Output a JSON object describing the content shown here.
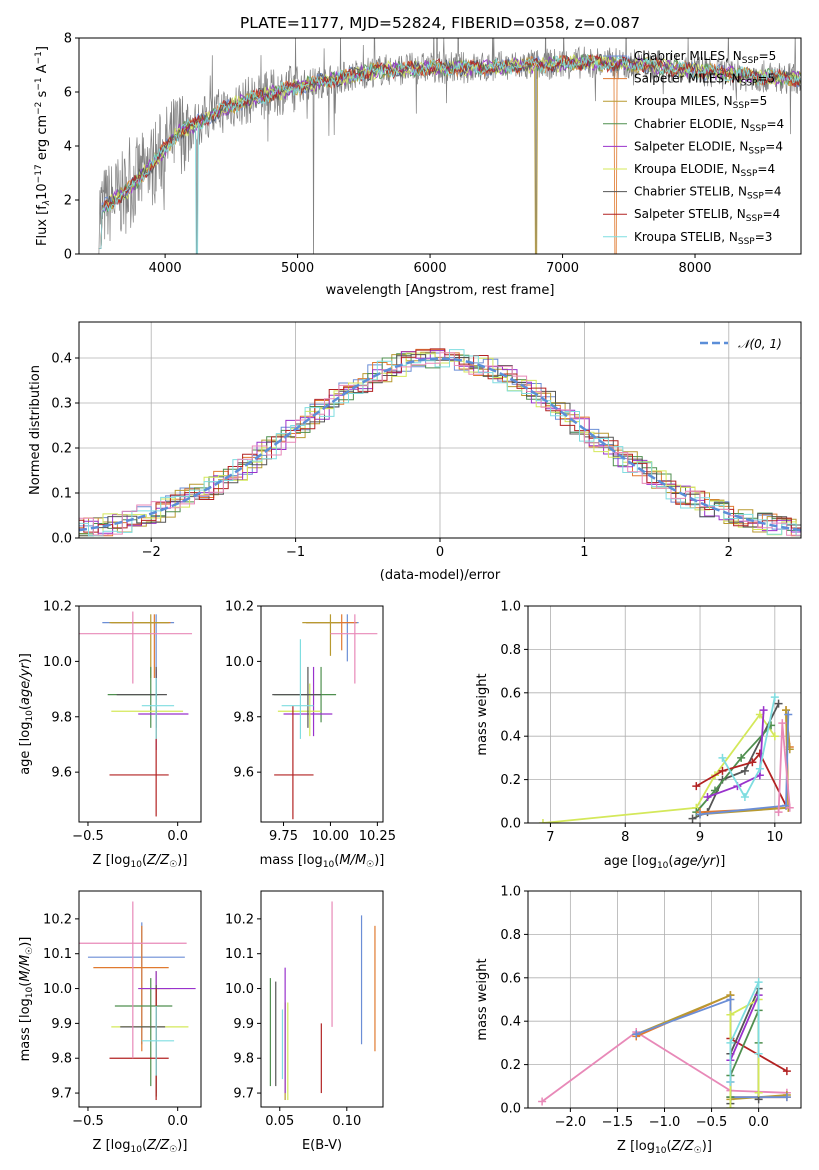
{
  "chart_data": [
    {
      "type": "line",
      "title": "PLATE=1177, MJD=52824, FIBERID=0358, z=0.087",
      "xlabel": "wavelength [Angstrom, rest frame]",
      "ylabel": "Flux [f_λ10^-17 erg cm^-2 s^-1 A^-1]",
      "xlim": [
        3350,
        8800
      ],
      "ylim": [
        0,
        8
      ],
      "xticks": [
        4000,
        5000,
        6000,
        7000,
        8000
      ],
      "yticks": [
        0,
        2,
        4,
        6,
        8
      ],
      "legend_position": "right",
      "data_spectrum_color": "#808080",
      "models": [
        {
          "name": "Chabrier MILES, N_SSP=5",
          "color": "#6b8ed6"
        },
        {
          "name": "Salpeter MILES, N_SSP=5",
          "color": "#e07a30"
        },
        {
          "name": "Kroupa MILES, N_SSP=5",
          "color": "#b89a30"
        },
        {
          "name": "Chabrier ELODIE, N_SSP=4",
          "color": "#4f8f4f"
        },
        {
          "name": "Salpeter ELODIE, N_SSP=4",
          "color": "#9932cc"
        },
        {
          "name": "Kroupa ELODIE, N_SSP=4",
          "color": "#d4e85a"
        },
        {
          "name": "Chabrier STELIB, N_SSP=4",
          "color": "#555555"
        },
        {
          "name": "Salpeter STELIB, N_SSP=4",
          "color": "#b22222"
        },
        {
          "name": "Kroupa STELIB, N_SSP=3",
          "color": "#7fdde0"
        }
      ],
      "continuum": {
        "x": [
          3500,
          3700,
          3900,
          4100,
          4300,
          4500,
          4700,
          5000,
          5300,
          5600,
          6000,
          6400,
          6800,
          7200,
          7600,
          8000,
          8400,
          8800
        ],
        "y": [
          1.6,
          2.3,
          3.3,
          4.5,
          5.0,
          5.5,
          5.8,
          6.2,
          6.5,
          6.8,
          6.9,
          6.9,
          7.0,
          7.1,
          7.0,
          6.8,
          6.6,
          6.5
        ]
      }
    },
    {
      "type": "step",
      "xlabel": "(data-model)/error",
      "ylabel": "Normed distribution",
      "xlim": [
        -2.5,
        2.5
      ],
      "ylim": [
        0,
        0.48
      ],
      "xticks": [
        -2,
        -1,
        0,
        1,
        2
      ],
      "yticks": [
        0.0,
        0.1,
        0.2,
        0.3,
        0.4
      ],
      "legend": [
        {
          "name": "N(0,1)",
          "color": "#5b8ed8",
          "style": "dashed"
        }
      ],
      "gaussian_mean": 0,
      "gaussian_sigma": 1
    },
    {
      "type": "errorbar",
      "xlabel": "Z [log10(Z/Z☉)]",
      "ylabel": "age  [log10(age/yr)]",
      "xlim": [
        -0.55,
        0.13
      ],
      "ylim": [
        9.42,
        10.2
      ],
      "xticks": [
        -0.5,
        0.0
      ],
      "yticks": [
        9.6,
        9.8,
        10.0,
        10.2
      ],
      "points": [
        {
          "x": -0.12,
          "y": 10.14,
          "xerr": [
            0.3,
            0.1
          ],
          "yerr": [
            0.2,
            0.03
          ],
          "color": "#6b8ed6"
        },
        {
          "x": -0.13,
          "y": 10.14,
          "xerr": [
            0.24,
            0.09
          ],
          "yerr": [
            0.2,
            0.03
          ],
          "color": "#e07a30"
        },
        {
          "x": -0.15,
          "y": 10.14,
          "xerr": [
            0.23,
            0.1
          ],
          "yerr": [
            0.2,
            0.03
          ],
          "color": "#b89a30"
        },
        {
          "x": -0.15,
          "y": 9.88,
          "xerr": [
            0.24,
            0.04
          ],
          "yerr": [
            0.12,
            0.1
          ],
          "color": "#4f8f4f"
        },
        {
          "x": -0.12,
          "y": 9.81,
          "xerr": [
            0.1,
            0.18
          ],
          "yerr": [
            0.13,
            0.16
          ],
          "color": "#9932cc"
        },
        {
          "x": -0.12,
          "y": 9.82,
          "xerr": [
            0.25,
            0.15
          ],
          "yerr": [
            0.1,
            0.1
          ],
          "color": "#d4e85a"
        },
        {
          "x": -0.12,
          "y": 9.88,
          "xerr": [
            0.22,
            0.06
          ],
          "yerr": [
            0.12,
            0.1
          ],
          "color": "#555555"
        },
        {
          "x": -0.12,
          "y": 9.59,
          "xerr": [
            0.26,
            0.07
          ],
          "yerr": [
            0.15,
            0.24
          ],
          "color": "#b22222"
        },
        {
          "x": -0.12,
          "y": 9.84,
          "xerr": [
            0.08,
            0.1
          ],
          "yerr": [
            0.12,
            0.1
          ],
          "color": "#7fdde0"
        },
        {
          "x": -0.25,
          "y": 10.1,
          "xerr": [
            0.3,
            0.33
          ],
          "yerr": [
            0.18,
            0.08
          ],
          "color": "#e889b8"
        }
      ]
    },
    {
      "type": "errorbar",
      "xlabel": "mass [log10(M/M☉)]",
      "ylabel": "",
      "xlim": [
        9.63,
        10.28
      ],
      "ylim": [
        9.42,
        10.2
      ],
      "xticks": [
        9.75,
        10.0,
        10.25
      ],
      "yticks": [
        9.6,
        9.8,
        10.0,
        10.2
      ],
      "points": [
        {
          "x": 10.09,
          "y": 10.14,
          "xerr": [
            0.22,
            0.06
          ],
          "yerr": [
            0.14,
            0.03
          ],
          "color": "#6b8ed6"
        },
        {
          "x": 10.06,
          "y": 10.14,
          "xerr": [
            0.19,
            0.08
          ],
          "yerr": [
            0.1,
            0.03
          ],
          "color": "#e07a30"
        },
        {
          "x": 10.0,
          "y": 10.14,
          "xerr": [
            0.15,
            0.05
          ],
          "yerr": [
            0.12,
            0.03
          ],
          "color": "#b89a30"
        },
        {
          "x": 9.95,
          "y": 9.88,
          "xerr": [
            0.25,
            0.08
          ],
          "yerr": [
            0.1,
            0.1
          ],
          "color": "#4f8f4f"
        },
        {
          "x": 9.91,
          "y": 9.81,
          "xerr": [
            0.16,
            0.1
          ],
          "yerr": [
            0.08,
            0.17
          ],
          "color": "#9932cc"
        },
        {
          "x": 9.89,
          "y": 9.82,
          "xerr": [
            0.17,
            0.06
          ],
          "yerr": [
            0.09,
            0.1
          ],
          "color": "#d4e85a"
        },
        {
          "x": 9.88,
          "y": 9.88,
          "xerr": [
            0.19,
            0.07
          ],
          "yerr": [
            0.12,
            0.1
          ],
          "color": "#555555"
        },
        {
          "x": 9.8,
          "y": 9.59,
          "xerr": [
            0.1,
            0.11
          ],
          "yerr": [
            0.16,
            0.25
          ],
          "color": "#b22222"
        },
        {
          "x": 9.84,
          "y": 9.84,
          "xerr": [
            0.1,
            0.07
          ],
          "yerr": [
            0.12,
            0.24
          ],
          "color": "#7fdde0"
        },
        {
          "x": 10.13,
          "y": 10.1,
          "xerr": [
            0.13,
            0.12
          ],
          "yerr": [
            0.18,
            0.07
          ],
          "color": "#e889b8"
        }
      ]
    },
    {
      "type": "line",
      "xlabel": "age  [log10(age/yr)]",
      "ylabel": "mass weight",
      "xlim": [
        6.7,
        10.35
      ],
      "ylim": [
        0,
        1.0
      ],
      "xticks": [
        7,
        8,
        9,
        10
      ],
      "yticks": [
        0.0,
        0.2,
        0.4,
        0.6,
        0.8,
        1.0
      ],
      "series": [
        {
          "color": "#d4e85a",
          "x": [
            6.9,
            8.95,
            9.2,
            9.8,
            10.0
          ],
          "y": [
            0.0,
            0.07,
            0.22,
            0.5,
            0.4
          ]
        },
        {
          "color": "#555555",
          "x": [
            8.9,
            9.1,
            9.3,
            9.6,
            10.05
          ],
          "y": [
            0.02,
            0.05,
            0.2,
            0.24,
            0.55
          ]
        },
        {
          "color": "#4f8f4f",
          "x": [
            8.95,
            9.2,
            9.55,
            9.95
          ],
          "y": [
            0.05,
            0.15,
            0.3,
            0.45
          ]
        },
        {
          "color": "#b22222",
          "x": [
            8.95,
            9.3,
            9.7,
            9.8,
            10.15
          ],
          "y": [
            0.17,
            0.24,
            0.28,
            0.32,
            0.08
          ]
        },
        {
          "color": "#9932cc",
          "x": [
            9.1,
            9.5,
            9.8,
            9.85
          ],
          "y": [
            0.12,
            0.17,
            0.22,
            0.52
          ]
        },
        {
          "color": "#7fdde0",
          "x": [
            9.3,
            9.6,
            9.8,
            10.0
          ],
          "y": [
            0.3,
            0.12,
            0.25,
            0.58
          ]
        },
        {
          "color": "#e07a30",
          "x": [
            9.0,
            10.18,
            10.15,
            10.2
          ],
          "y": [
            0.05,
            0.07,
            0.52,
            0.35
          ]
        },
        {
          "color": "#b89a30",
          "x": [
            9.0,
            10.18,
            10.15,
            10.2
          ],
          "y": [
            0.04,
            0.07,
            0.52,
            0.34
          ]
        },
        {
          "color": "#6b8ed6",
          "x": [
            9.0,
            10.15,
            10.18
          ],
          "y": [
            0.04,
            0.08,
            0.5
          ]
        },
        {
          "color": "#e889b8",
          "x": [
            10.05,
            10.1,
            10.2
          ],
          "y": [
            0.05,
            0.46,
            0.07
          ]
        }
      ]
    },
    {
      "type": "errorbar",
      "xlabel": "Z [log10(Z/Z☉)]",
      "ylabel": "mass [log10(M/M☉)]",
      "xlim": [
        -0.55,
        0.13
      ],
      "ylim": [
        9.66,
        10.28
      ],
      "xticks": [
        -0.5,
        0.0
      ],
      "yticks": [
        9.7,
        9.8,
        9.9,
        10.0,
        10.1,
        10.2
      ],
      "points": [
        {
          "x": -0.2,
          "y": 10.09,
          "xerr": [
            0.3,
            0.24
          ],
          "yerr": [
            0.25,
            0.1
          ],
          "color": "#6b8ed6"
        },
        {
          "x": -0.2,
          "y": 10.06,
          "xerr": [
            0.27,
            0.15
          ],
          "yerr": [
            0.24,
            0.12
          ],
          "color": "#e07a30"
        },
        {
          "x": -0.12,
          "y": 10.0,
          "xerr": [
            0.08,
            0.08
          ],
          "yerr": [
            0.22,
            0.05
          ],
          "color": "#b89a30"
        },
        {
          "x": -0.15,
          "y": 9.95,
          "xerr": [
            0.2,
            0.12
          ],
          "yerr": [
            0.23,
            0.08
          ],
          "color": "#4f8f4f"
        },
        {
          "x": -0.12,
          "y": 10.0,
          "xerr": [
            0.1,
            0.22
          ],
          "yerr": [
            0.3,
            0.05
          ],
          "color": "#9932cc"
        },
        {
          "x": -0.12,
          "y": 9.89,
          "xerr": [
            0.25,
            0.18
          ],
          "yerr": [
            0.2,
            0.1
          ],
          "color": "#d4e85a"
        },
        {
          "x": -0.12,
          "y": 9.89,
          "xerr": [
            0.2,
            0.05
          ],
          "yerr": [
            0.2,
            0.12
          ],
          "color": "#555555"
        },
        {
          "x": -0.12,
          "y": 9.8,
          "xerr": [
            0.26,
            0.07
          ],
          "yerr": [
            0.12,
            0.2
          ],
          "color": "#b22222"
        },
        {
          "x": -0.12,
          "y": 9.85,
          "xerr": [
            0.08,
            0.1
          ],
          "yerr": [
            0.1,
            0.1
          ],
          "color": "#7fdde0"
        },
        {
          "x": -0.25,
          "y": 10.13,
          "xerr": [
            0.3,
            0.3
          ],
          "yerr": [
            0.33,
            0.12
          ],
          "color": "#e889b8"
        }
      ]
    },
    {
      "type": "errorbar",
      "xlabel": "E(B-V)",
      "ylabel": "",
      "xlim": [
        0.036,
        0.127
      ],
      "ylim": [
        9.66,
        10.28
      ],
      "xticks": [
        0.05,
        0.1
      ],
      "yticks": [
        9.7,
        9.8,
        9.9,
        10.0,
        10.1,
        10.2
      ],
      "points": [
        {
          "x": 0.111,
          "y": 10.02,
          "xerr": [
            0,
            0
          ],
          "yerr": [
            0.18,
            0.19
          ],
          "color": "#6b8ed6"
        },
        {
          "x": 0.121,
          "y": 10.0,
          "xerr": [
            0,
            0
          ],
          "yerr": [
            0.18,
            0.18
          ],
          "color": "#e07a30"
        },
        {
          "x": 0.054,
          "y": 9.82,
          "xerr": [
            0,
            0
          ],
          "yerr": [
            0.14,
            0.14
          ],
          "color": "#b89a30"
        },
        {
          "x": 0.043,
          "y": 9.88,
          "xerr": [
            0,
            0
          ],
          "yerr": [
            0.16,
            0.15
          ],
          "color": "#4f8f4f"
        },
        {
          "x": 0.054,
          "y": 9.88,
          "xerr": [
            0,
            0
          ],
          "yerr": [
            0.18,
            0.18
          ],
          "color": "#9932cc"
        },
        {
          "x": 0.056,
          "y": 9.82,
          "xerr": [
            0,
            0
          ],
          "yerr": [
            0.14,
            0.14
          ],
          "color": "#d4e85a"
        },
        {
          "x": 0.047,
          "y": 9.87,
          "xerr": [
            0,
            0
          ],
          "yerr": [
            0.15,
            0.15
          ],
          "color": "#555555"
        },
        {
          "x": 0.081,
          "y": 9.8,
          "xerr": [
            0,
            0
          ],
          "yerr": [
            0.1,
            0.1
          ],
          "color": "#b22222"
        },
        {
          "x": 0.052,
          "y": 9.84,
          "xerr": [
            0,
            0
          ],
          "yerr": [
            0.1,
            0.1
          ],
          "color": "#7fdde0"
        },
        {
          "x": 0.089,
          "y": 10.07,
          "xerr": [
            0,
            0
          ],
          "yerr": [
            0.18,
            0.18
          ],
          "color": "#e889b8"
        }
      ]
    },
    {
      "type": "line",
      "xlabel": "Z [log10(Z/Z☉)]",
      "ylabel": "mass weight",
      "xlim": [
        -2.45,
        0.45
      ],
      "ylim": [
        0,
        1.0
      ],
      "xticks": [
        -2.0,
        -1.5,
        -1.0,
        -0.5,
        0.0
      ],
      "yticks": [
        0.0,
        0.2,
        0.4,
        0.6,
        0.8,
        1.0
      ],
      "series": [
        {
          "color": "#e889b8",
          "x": [
            -2.3,
            -1.3,
            -0.3,
            0.3
          ],
          "y": [
            0.03,
            0.35,
            0.08,
            0.07
          ]
        },
        {
          "color": "#e07a30",
          "x": [
            -1.3,
            -0.3,
            -0.3,
            0.3
          ],
          "y": [
            0.33,
            0.52,
            0.05,
            0.05
          ]
        },
        {
          "color": "#b89a30",
          "x": [
            -1.3,
            -0.3,
            -0.3,
            0.3
          ],
          "y": [
            0.34,
            0.52,
            0.04,
            0.06
          ]
        },
        {
          "color": "#6b8ed6",
          "x": [
            -1.3,
            -0.3,
            -0.3,
            0.3
          ],
          "y": [
            0.34,
            0.5,
            0.05,
            0.05
          ]
        },
        {
          "color": "#b22222",
          "x": [
            -0.3,
            0.3
          ],
          "y": [
            0.32,
            0.17
          ]
        },
        {
          "color": "#555555",
          "x": [
            -0.3,
            -0.3,
            0.0,
            0.0
          ],
          "y": [
            0.02,
            0.25,
            0.55,
            0.04
          ]
        },
        {
          "color": "#4f8f4f",
          "x": [
            -0.3,
            -0.3,
            0.0,
            0.0
          ],
          "y": [
            0.05,
            0.15,
            0.45,
            0.3
          ]
        },
        {
          "color": "#d4e85a",
          "x": [
            -0.3,
            -0.3,
            0.0,
            0.0
          ],
          "y": [
            0.0,
            0.43,
            0.5,
            0.07
          ]
        },
        {
          "color": "#9932cc",
          "x": [
            -0.3,
            -0.3,
            0.0
          ],
          "y": [
            0.12,
            0.22,
            0.52
          ]
        },
        {
          "color": "#7fdde0",
          "x": [
            -0.3,
            -0.3,
            0.0,
            0.0
          ],
          "y": [
            0.12,
            0.3,
            0.58,
            0.25
          ]
        }
      ]
    }
  ]
}
